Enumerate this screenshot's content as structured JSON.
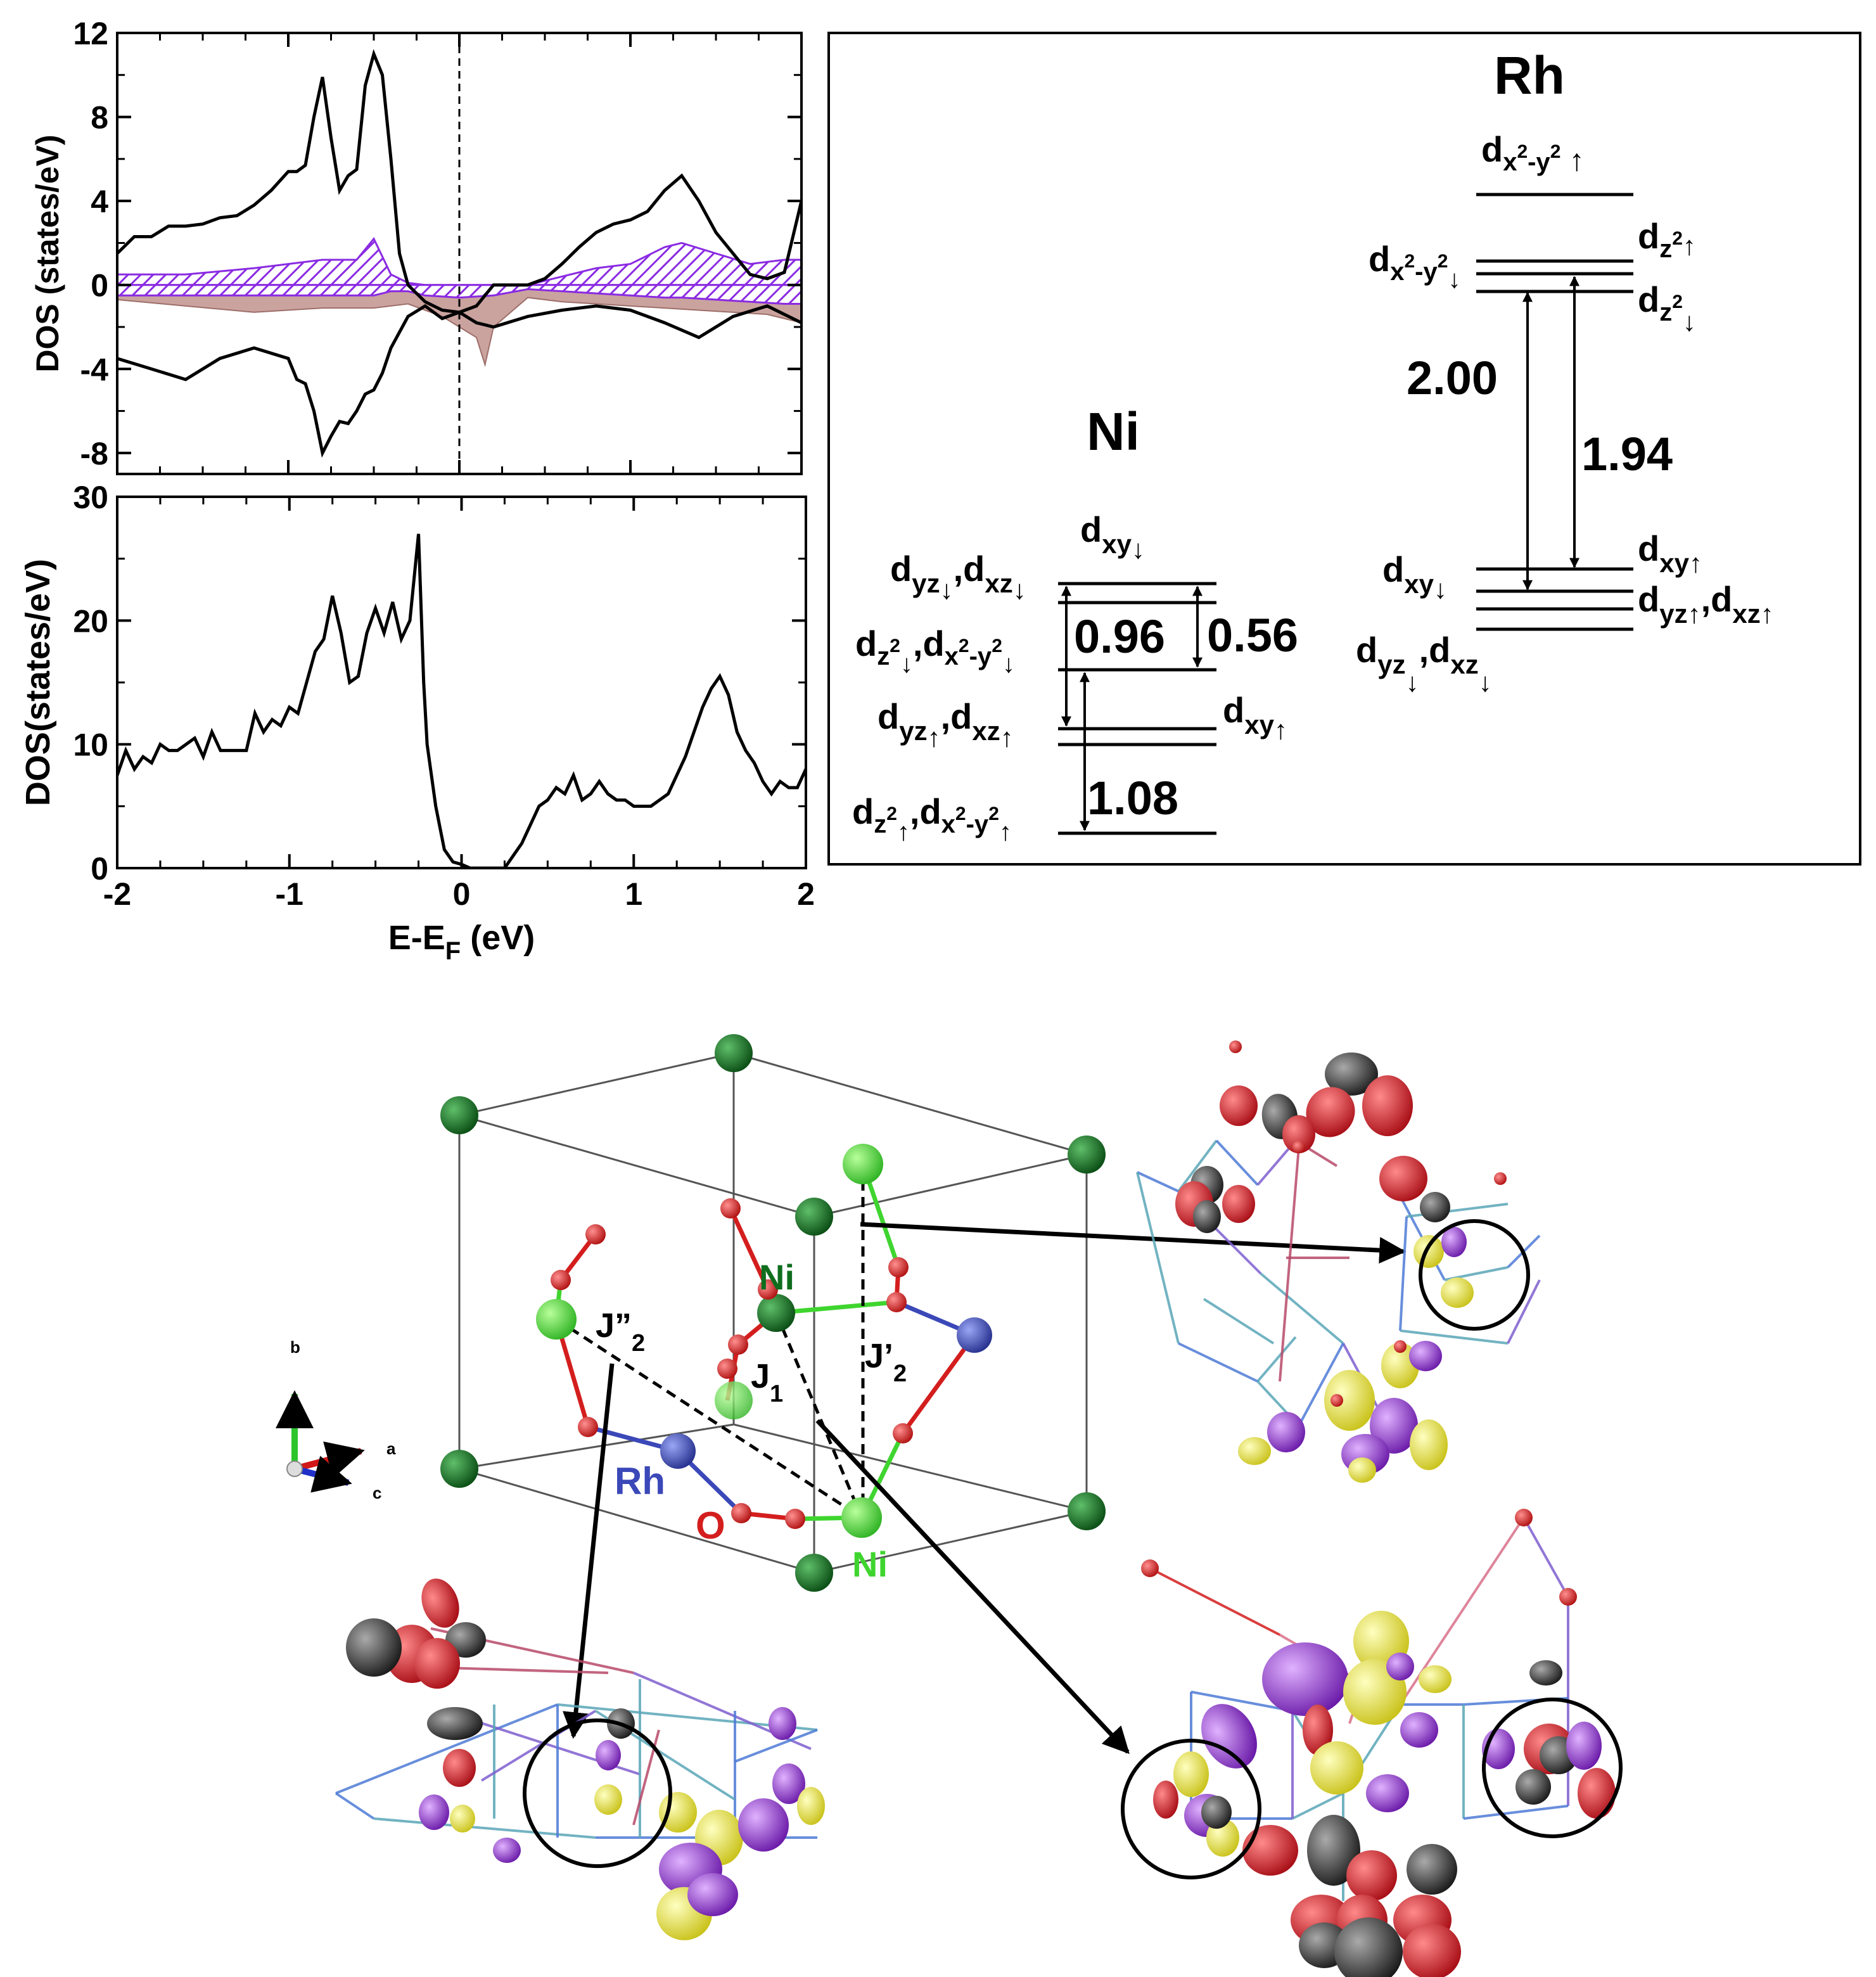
{
  "chart_data": [
    {
      "type": "area",
      "xlabel": "",
      "ylabel": "DOS (states/eV)",
      "xlim": [
        -2,
        2
      ],
      "ylim": [
        -9,
        12
      ],
      "yticks": [
        "12",
        "8",
        "4",
        "0",
        "-4",
        "-8"
      ],
      "grid": false,
      "series": [
        {
          "x": [
            -2.0,
            -1.9,
            -1.8,
            -1.7,
            -1.6,
            -1.5,
            -1.4,
            -1.3,
            -1.2,
            -1.1,
            -1.0,
            -0.95,
            -0.9,
            -0.85,
            -0.8,
            -0.75,
            -0.7,
            -0.65,
            -0.6,
            -0.55,
            -0.5,
            -0.45,
            -0.4,
            -0.35,
            -0.3,
            -0.25,
            -0.2,
            -0.1,
            0.0,
            0.1,
            0.2,
            0.3,
            0.4,
            0.5,
            0.6,
            0.7,
            0.8,
            0.9,
            1.0,
            1.1,
            1.2,
            1.3,
            1.4,
            1.5,
            1.6,
            1.7,
            1.8,
            1.9,
            2.0
          ],
          "y": [
            1.5,
            2.3,
            2.3,
            2.8,
            2.8,
            2.9,
            3.2,
            3.3,
            3.8,
            4.5,
            5.4,
            5.4,
            5.7,
            8.0,
            9.9,
            7.0,
            4.5,
            5.2,
            5.5,
            9.5,
            11.0,
            10.0,
            6.0,
            1.5,
            0.0,
            -0.4,
            -0.8,
            -1.2,
            -1.3,
            -1.0,
            0.0,
            0.0,
            0.0,
            0.3,
            1.0,
            1.8,
            2.5,
            2.9,
            3.1,
            3.5,
            4.5,
            5.2,
            4.0,
            2.5,
            1.5,
            0.5,
            0.3,
            0.6,
            4.0
          ]
        },
        {
          "x": [
            -2.0,
            -1.8,
            -1.6,
            -1.4,
            -1.2,
            -1.0,
            -0.95,
            -0.9,
            -0.85,
            -0.8,
            -0.75,
            -0.7,
            -0.65,
            -0.6,
            -0.55,
            -0.5,
            -0.45,
            -0.4,
            -0.3,
            -0.2,
            -0.1,
            0.0,
            0.1,
            0.2,
            0.4,
            0.6,
            0.8,
            1.0,
            1.2,
            1.4,
            1.6,
            1.8,
            2.0
          ],
          "y": [
            -3.5,
            -4.0,
            -4.5,
            -3.5,
            -3.0,
            -3.5,
            -4.5,
            -4.7,
            -6.0,
            -8.0,
            -7.2,
            -6.5,
            -6.6,
            -6.0,
            -5.2,
            -5.0,
            -4.2,
            -3.0,
            -1.5,
            -1.0,
            -1.6,
            -1.3,
            -1.8,
            -2.0,
            -1.5,
            -1.2,
            -1.0,
            -1.2,
            -1.8,
            -2.5,
            -1.5,
            -1.0,
            -1.8
          ]
        },
        {
          "x": [
            -2.0,
            -1.6,
            -1.2,
            -0.8,
            -0.6,
            -0.5,
            -0.4,
            -0.3,
            -0.2,
            0.0,
            0.2,
            0.4,
            0.6,
            0.8,
            1.0,
            1.2,
            1.3,
            1.5,
            1.7,
            1.9,
            2.0
          ],
          "y": [
            0.5,
            0.5,
            0.8,
            1.2,
            1.2,
            2.2,
            0.5,
            0.1,
            0.0,
            0.0,
            0.0,
            0.0,
            0.4,
            0.8,
            1.0,
            1.8,
            2.0,
            1.5,
            1.0,
            1.2,
            1.2
          ]
        },
        {
          "x": [
            -2.0,
            -1.6,
            -1.2,
            -0.8,
            -0.6,
            -0.5,
            -0.4,
            -0.3,
            -0.2,
            0.0,
            0.2,
            0.4,
            0.6,
            0.8,
            1.0,
            1.2,
            1.3,
            1.5,
            1.7,
            1.9,
            2.0
          ],
          "y": [
            -0.5,
            -0.5,
            -0.5,
            -0.5,
            -0.5,
            -0.5,
            -0.3,
            -0.3,
            -0.5,
            -0.6,
            -0.5,
            -0.2,
            -0.3,
            -0.4,
            -0.5,
            -0.6,
            -0.6,
            -0.7,
            -0.8,
            -0.9,
            -0.9
          ]
        },
        {
          "x": [
            -2.0,
            -1.6,
            -1.2,
            -0.8,
            -0.5,
            -0.3,
            -0.1,
            0.0,
            0.1,
            0.15,
            0.2,
            0.4,
            0.6,
            0.8,
            1.0,
            1.2,
            1.4,
            1.6,
            1.8,
            2.0
          ],
          "y": [
            -0.7,
            -1.0,
            -1.3,
            -1.1,
            -1.1,
            -0.9,
            -1.5,
            -2.0,
            -2.5,
            -3.8,
            -2.0,
            -0.6,
            -0.8,
            -0.9,
            -1.0,
            -1.1,
            -1.2,
            -1.3,
            -1.4,
            -1.8
          ]
        }
      ]
    },
    {
      "type": "line",
      "xlabel": "E-E",
      "xlabel_sub": "F",
      "xlabel_unit": " (eV)",
      "ylabel": "DOS(states/eV)",
      "xlim": [
        -2,
        2
      ],
      "ylim": [
        0,
        30
      ],
      "xticks": [
        "-2",
        "-1",
        "0",
        "1",
        "2"
      ],
      "yticks": [
        "30",
        "20",
        "10",
        "0"
      ],
      "grid": false,
      "series": [
        {
          "x": [
            -2.0,
            -1.95,
            -1.9,
            -1.85,
            -1.8,
            -1.75,
            -1.7,
            -1.65,
            -1.6,
            -1.55,
            -1.5,
            -1.45,
            -1.4,
            -1.35,
            -1.3,
            -1.25,
            -1.2,
            -1.15,
            -1.1,
            -1.05,
            -1.0,
            -0.95,
            -0.9,
            -0.85,
            -0.8,
            -0.75,
            -0.7,
            -0.65,
            -0.6,
            -0.55,
            -0.5,
            -0.45,
            -0.4,
            -0.35,
            -0.3,
            -0.25,
            -0.22,
            -0.2,
            -0.15,
            -0.1,
            -0.05,
            0.0,
            0.05,
            0.1,
            0.15,
            0.2,
            0.25,
            0.3,
            0.35,
            0.4,
            0.45,
            0.5,
            0.55,
            0.6,
            0.65,
            0.7,
            0.75,
            0.8,
            0.85,
            0.9,
            0.95,
            1.0,
            1.1,
            1.2,
            1.3,
            1.4,
            1.45,
            1.5,
            1.55,
            1.6,
            1.65,
            1.7,
            1.75,
            1.8,
            1.85,
            1.9,
            1.95,
            2.0
          ],
          "y": [
            7.5,
            9.5,
            8.0,
            9.0,
            8.5,
            10.0,
            9.5,
            9.5,
            10.0,
            10.5,
            9.0,
            11.0,
            9.5,
            9.5,
            9.5,
            9.5,
            12.5,
            11.0,
            12.0,
            11.5,
            13.0,
            12.5,
            15.0,
            17.5,
            18.5,
            22.0,
            19.0,
            15.0,
            15.5,
            19.0,
            21.0,
            19.0,
            21.5,
            18.5,
            20.0,
            27.0,
            15.0,
            10.0,
            5.0,
            1.5,
            0.5,
            0.3,
            0.0,
            0.0,
            0.0,
            0.0,
            0.0,
            1.0,
            2.0,
            3.5,
            5.0,
            5.5,
            6.5,
            6.0,
            7.5,
            5.5,
            6.0,
            7.0,
            6.0,
            5.5,
            5.5,
            5.0,
            5.0,
            6.0,
            9.0,
            13.0,
            14.5,
            15.5,
            14.0,
            11.0,
            9.5,
            8.5,
            7.0,
            6.0,
            7.0,
            6.5,
            6.5,
            8.0
          ]
        }
      ]
    }
  ],
  "ni_diagram": {
    "title": "Ni",
    "labels": {
      "dxy_dn": [
        "d",
        "xy",
        "↓"
      ],
      "dyz_dxz_dn": [
        "d",
        "yz",
        "↓",
        ",d",
        "xz",
        "↓"
      ],
      "dz2_dx2y2_dn": [
        "d",
        "z",
        "2",
        "↓",
        ",d",
        "x",
        "2",
        "-y",
        "2",
        "↓"
      ],
      "dyz_dxz_up": [
        "d",
        "yz",
        "↑",
        ",d",
        "xz",
        "↑"
      ],
      "dxy_up": [
        "d",
        "xy",
        "↑"
      ],
      "dz2_dx2y2_up": [
        "d",
        "z",
        "2",
        "↑",
        ",d",
        "x",
        "2",
        "-y",
        "2",
        "↑"
      ]
    },
    "gaps": [
      "0.96",
      "0.56",
      "1.08"
    ]
  },
  "rh_diagram": {
    "title": "Rh",
    "labels": {
      "dx2y2_up": [
        "d",
        "x",
        "2",
        "-y",
        "2",
        " ↑"
      ],
      "dz2_up": [
        "d",
        "z",
        "2",
        "↑"
      ],
      "dx2y2_dn": [
        "d",
        "x",
        "2",
        "-y",
        "2",
        "↓"
      ],
      "dz2_dn": [
        "d",
        "z",
        "2",
        "↓"
      ],
      "dxy_up": [
        "d",
        "xy",
        "↑"
      ],
      "dxy_dn": [
        "d",
        "xy",
        "↓"
      ],
      "dyz_dxz_up": [
        "d",
        "yz",
        "↑",
        ",d",
        "xz",
        "↑"
      ],
      "dyz_dxz_dn": [
        "d",
        "yz",
        "↓",
        ",d",
        "xz",
        "↓"
      ]
    },
    "gaps": [
      "2.00",
      "1.94"
    ]
  },
  "structure": {
    "atom_labels": {
      "ni_top": "Ni",
      "ni_bottom": "Ni",
      "rh": "Rh",
      "o": "O"
    },
    "couplings": {
      "j1": [
        "J",
        "1"
      ],
      "j2p": [
        "J’",
        "2"
      ],
      "j2pp": [
        "J”",
        "2"
      ]
    },
    "axes": {
      "a": "a",
      "b": "b",
      "c": "c"
    }
  },
  "colors": {
    "ni_dark": "#0f6e1e",
    "ni_light": "#3fd52f",
    "rh": "#3b48b8",
    "o": "#d41e1e",
    "hatch": "#8a2be2",
    "rosy": "#caa39f",
    "orbital_red": "#e0202a",
    "orbital_black": "#333333",
    "orbital_yellow": "#f0ea3c",
    "orbital_purple": "#9a35d8"
  }
}
